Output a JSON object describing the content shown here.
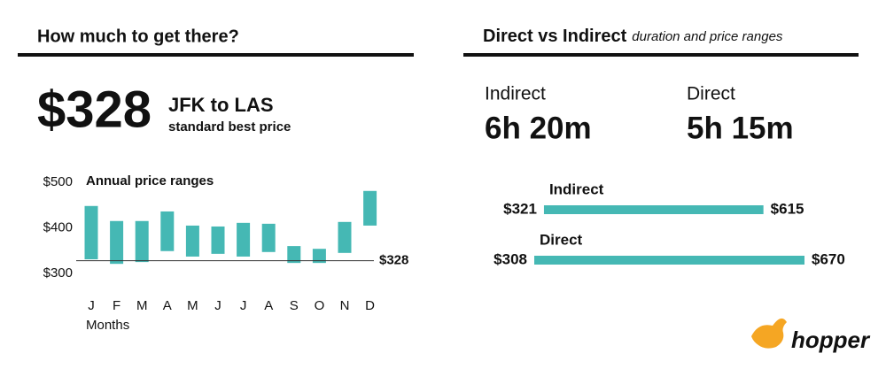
{
  "left_panel": {
    "title": "How much to get there?",
    "price": "$328",
    "route": "JFK to LAS",
    "route_subtitle": "standard best price"
  },
  "right_panel": {
    "title": "Direct vs Indirect",
    "subtitle": "duration and price ranges",
    "durations": [
      {
        "label": "Indirect",
        "value": "6h 20m"
      },
      {
        "label": "Direct",
        "value": "5h 15m"
      }
    ]
  },
  "logo": "hopper",
  "chart_data": [
    {
      "type": "floating_bar",
      "title": "Annual price ranges",
      "x_label": "Months",
      "categories": [
        "J",
        "F",
        "M",
        "A",
        "M",
        "J",
        "J",
        "A",
        "S",
        "O",
        "N",
        "D"
      ],
      "low": [
        331,
        321,
        325,
        349,
        337,
        343,
        337,
        347,
        323,
        323,
        345,
        405
      ],
      "high": [
        448,
        415,
        415,
        436,
        405,
        403,
        411,
        409,
        360,
        354,
        413,
        481
      ],
      "color": "#45b8b4",
      "ylim": [
        300,
        500
      ],
      "yticks": [
        {
          "value": 300,
          "label": "$300"
        },
        {
          "value": 400,
          "label": "$400"
        },
        {
          "value": 500,
          "label": "$500"
        }
      ],
      "reference_line": {
        "value": 328,
        "label": "$328"
      }
    },
    {
      "type": "range_bar",
      "categories": [
        "Indirect",
        "Direct"
      ],
      "low": [
        321,
        308
      ],
      "high": [
        615,
        670
      ],
      "low_labels": [
        "$321",
        "$308"
      ],
      "high_labels": [
        "$615",
        "$670"
      ],
      "color": "#45b8b4"
    }
  ]
}
